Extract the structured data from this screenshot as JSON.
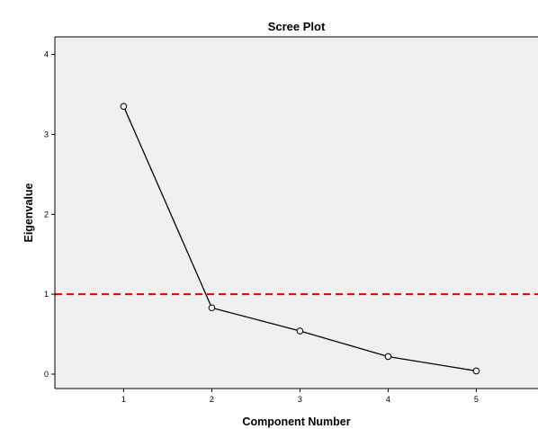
{
  "chart_data": {
    "type": "line",
    "title": "Scree Plot",
    "xlabel": "Component Number",
    "ylabel": "Eigenvalue",
    "x": [
      1,
      2,
      3,
      4,
      5
    ],
    "series": [
      {
        "values": [
          3.35,
          0.83,
          0.54,
          0.22,
          0.04
        ]
      }
    ],
    "xticks": [
      1,
      2,
      3,
      4,
      5
    ],
    "yticks": [
      0,
      1,
      2,
      3,
      4
    ],
    "xlim": [
      0.22,
      5.7
    ],
    "ylim": [
      -0.18,
      4.22
    ],
    "reference_line": {
      "y": 1,
      "style": "dashed",
      "color": "#dd0000"
    },
    "grid": false,
    "markers": "open-circle",
    "colors": {
      "plot_background": "#f0f0f0",
      "line": "#000000",
      "marker_face": "#f0f0f0"
    }
  }
}
